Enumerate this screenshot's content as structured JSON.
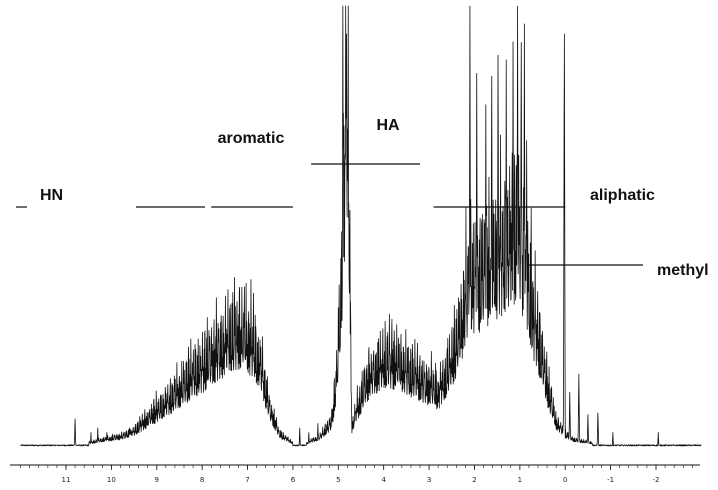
{
  "chart_data": {
    "type": "line",
    "title": "",
    "xlabel": "",
    "ylabel": "",
    "xlim": [
      12.0,
      -3.0
    ],
    "ylim": [
      0,
      100
    ],
    "x_reversed": true,
    "grid": false,
    "legend": "none",
    "line_color": "#111111",
    "x_ticks": [
      11,
      10,
      9,
      8,
      7,
      6,
      5,
      4,
      3,
      2,
      1,
      0,
      -1,
      -2
    ],
    "x_tick_labels": [
      "11",
      "10",
      "9",
      "8",
      "7",
      "6",
      "5",
      "4",
      "3",
      "2",
      "1",
      "0",
      "-1",
      "-2"
    ],
    "regions": [
      {
        "label": "HN",
        "from": 11.0,
        "to": 7.8
      },
      {
        "label": "aromatic",
        "from": 7.8,
        "to": 6.0
      },
      {
        "label": "HA",
        "from": 5.6,
        "to": 3.2
      },
      {
        "label": "aliphatic",
        "from": 2.9,
        "to": 0.0
      },
      {
        "label": "methyl",
        "from": 0.8,
        "to": -1.8
      }
    ],
    "baseline": 2,
    "envelope": [
      [
        12.0,
        2
      ],
      [
        11.2,
        2
      ],
      [
        10.9,
        3
      ],
      [
        10.5,
        3
      ],
      [
        10.2,
        4
      ],
      [
        9.8,
        5
      ],
      [
        9.5,
        7
      ],
      [
        9.2,
        11
      ],
      [
        8.9,
        15
      ],
      [
        8.6,
        19
      ],
      [
        8.3,
        24
      ],
      [
        8.0,
        28
      ],
      [
        7.7,
        33
      ],
      [
        7.4,
        38
      ],
      [
        7.1,
        40
      ],
      [
        6.9,
        36
      ],
      [
        6.7,
        28
      ],
      [
        6.5,
        14
      ],
      [
        6.3,
        6
      ],
      [
        6.0,
        3
      ],
      [
        5.7,
        3
      ],
      [
        5.4,
        5
      ],
      [
        5.15,
        10
      ],
      [
        5.05,
        22
      ],
      [
        4.95,
        46
      ],
      [
        4.85,
        100
      ],
      [
        4.78,
        100
      ],
      [
        4.7,
        8
      ],
      [
        4.6,
        14
      ],
      [
        4.3,
        26
      ],
      [
        4.0,
        30
      ],
      [
        3.7,
        30
      ],
      [
        3.4,
        26
      ],
      [
        3.2,
        24
      ],
      [
        3.0,
        22
      ],
      [
        2.8,
        20
      ],
      [
        2.6,
        26
      ],
      [
        2.4,
        36
      ],
      [
        2.2,
        50
      ],
      [
        2.1,
        60
      ],
      [
        2.0,
        56
      ],
      [
        1.8,
        60
      ],
      [
        1.6,
        63
      ],
      [
        1.4,
        66
      ],
      [
        1.2,
        68
      ],
      [
        1.0,
        72
      ],
      [
        0.9,
        62
      ],
      [
        0.8,
        52
      ],
      [
        0.6,
        38
      ],
      [
        0.4,
        22
      ],
      [
        0.2,
        10
      ],
      [
        0.0,
        6
      ],
      [
        -0.2,
        4
      ],
      [
        -0.6,
        3
      ],
      [
        -1.2,
        2
      ],
      [
        -2.2,
        2
      ],
      [
        -3.0,
        2
      ]
    ],
    "sharp_peaks": [
      {
        "x": 10.8,
        "y": 8
      },
      {
        "x": 10.45,
        "y": 5
      },
      {
        "x": 10.3,
        "y": 6
      },
      {
        "x": 10.1,
        "y": 5
      },
      {
        "x": 9.8,
        "y": 4
      },
      {
        "x": 9.6,
        "y": 6
      },
      {
        "x": 9.45,
        "y": 5
      },
      {
        "x": 9.35,
        "y": 7
      },
      {
        "x": 5.85,
        "y": 6
      },
      {
        "x": 5.65,
        "y": 5
      },
      {
        "x": 5.45,
        "y": 7
      },
      {
        "x": 4.9,
        "y": 100
      },
      {
        "x": 4.82,
        "y": 100
      },
      {
        "x": 2.1,
        "y": 100
      },
      {
        "x": 1.95,
        "y": 85
      },
      {
        "x": 1.75,
        "y": 78
      },
      {
        "x": 1.62,
        "y": 90
      },
      {
        "x": 1.48,
        "y": 95
      },
      {
        "x": 1.3,
        "y": 88
      },
      {
        "x": 1.15,
        "y": 92
      },
      {
        "x": 1.05,
        "y": 100
      },
      {
        "x": 0.97,
        "y": 98
      },
      {
        "x": 0.9,
        "y": 96
      },
      {
        "x": 0.85,
        "y": 70
      },
      {
        "x": 0.75,
        "y": 55
      },
      {
        "x": 0.02,
        "y": 100
      },
      {
        "x": -0.1,
        "y": 14
      },
      {
        "x": -0.3,
        "y": 18
      },
      {
        "x": -0.5,
        "y": 9
      },
      {
        "x": -0.72,
        "y": 10
      },
      {
        "x": -1.05,
        "y": 5
      },
      {
        "x": -2.05,
        "y": 5
      }
    ]
  }
}
